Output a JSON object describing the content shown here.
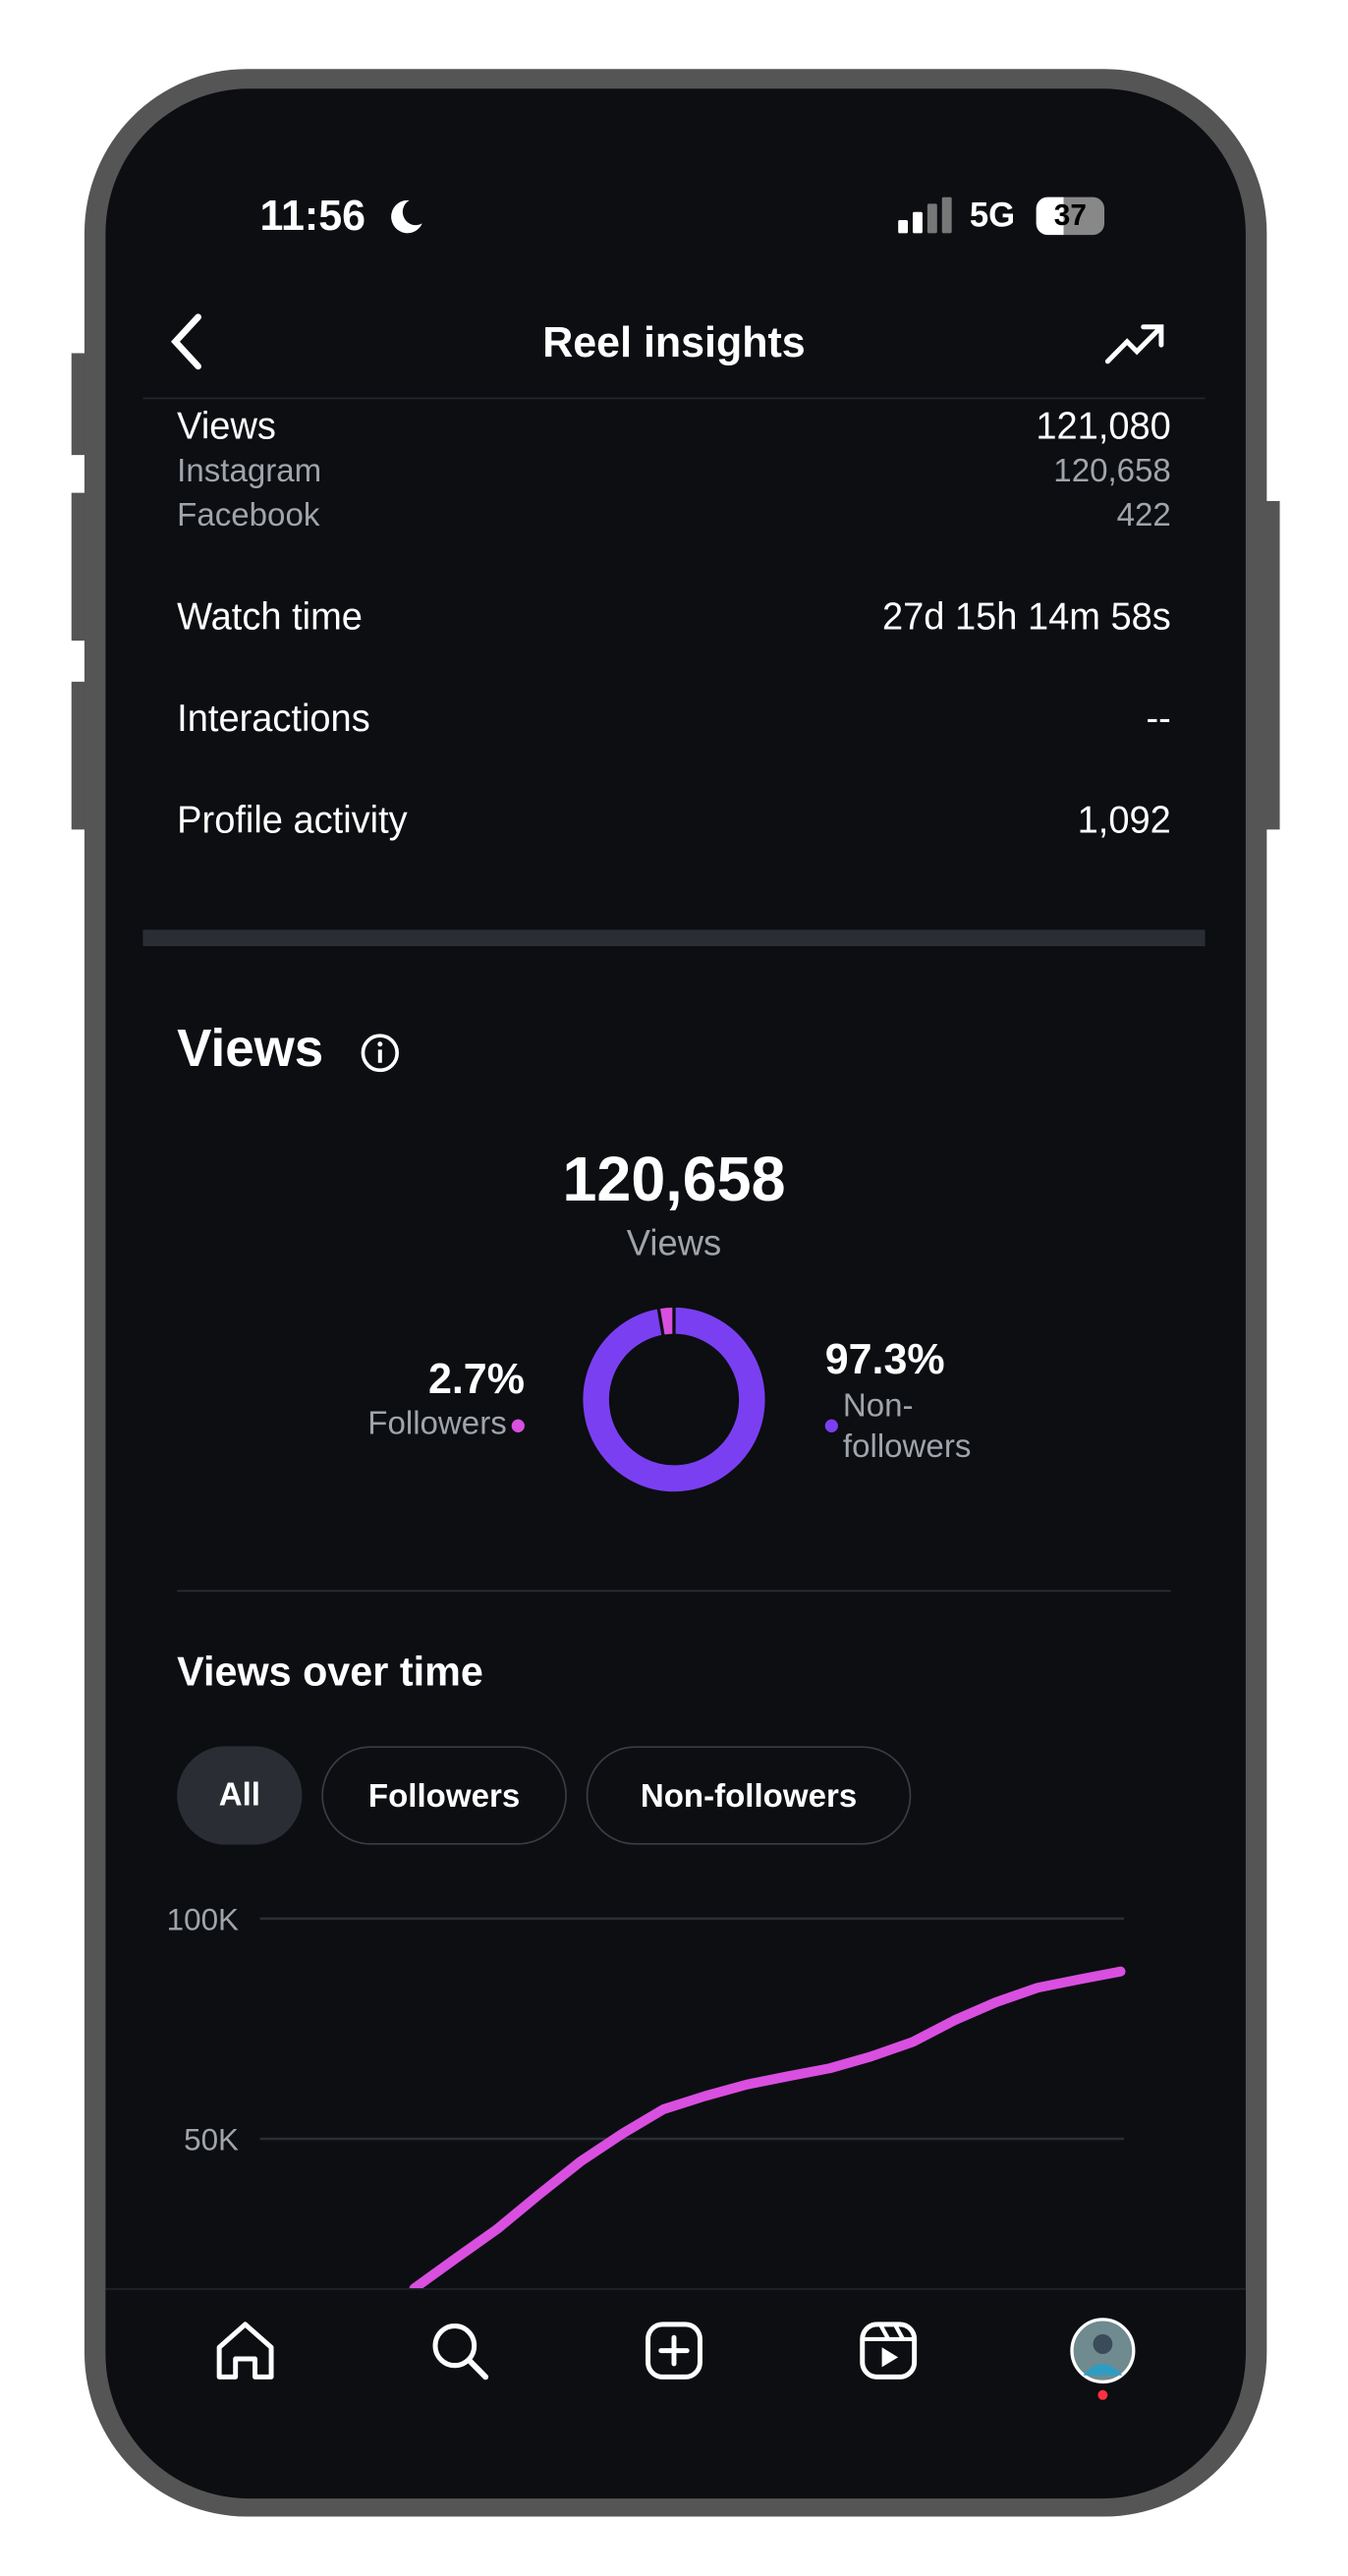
{
  "status_bar": {
    "time": "11:56",
    "network": "5G",
    "battery": "37"
  },
  "header": {
    "title": "Reel insights"
  },
  "metrics": [
    {
      "label": "Views",
      "value": "121,080"
    },
    {
      "label": "Instagram",
      "value": "120,658"
    },
    {
      "label": "Facebook",
      "value": "422"
    },
    {
      "label": "Watch time",
      "value": "27d 15h 14m 58s"
    },
    {
      "label": "Interactions",
      "value": "--"
    },
    {
      "label": "Profile activity",
      "value": "1,092"
    }
  ],
  "views_section": {
    "title": "Views"
  },
  "chart_data": [
    {
      "type": "donut",
      "total": "120,658",
      "total_label": "Views",
      "categories": [
        "Followers",
        "Non-followers"
      ],
      "values": [
        2.7,
        97.3
      ],
      "value_labels": [
        "2.7%",
        "97.3%"
      ],
      "colors": [
        "#d94fe0",
        "#7b3ff2"
      ]
    },
    {
      "type": "line",
      "title": "Views over time",
      "filters": [
        "All",
        "Followers",
        "Non-followers"
      ],
      "series": [
        {
          "color": "#d94fe0",
          "values": [
            16000,
            22800,
            29500,
            37300,
            44800,
            51100,
            56700,
            59700,
            62300,
            64200,
            66000,
            68700,
            72000,
            76900,
            81000,
            84300,
            86200,
            88000
          ]
        }
      ],
      "ylim": [
        0,
        100000
      ],
      "yticks": [
        {
          "value": 50000,
          "label": "50K"
        },
        {
          "value": 100000,
          "label": "100K"
        }
      ],
      "grid": true
    }
  ]
}
